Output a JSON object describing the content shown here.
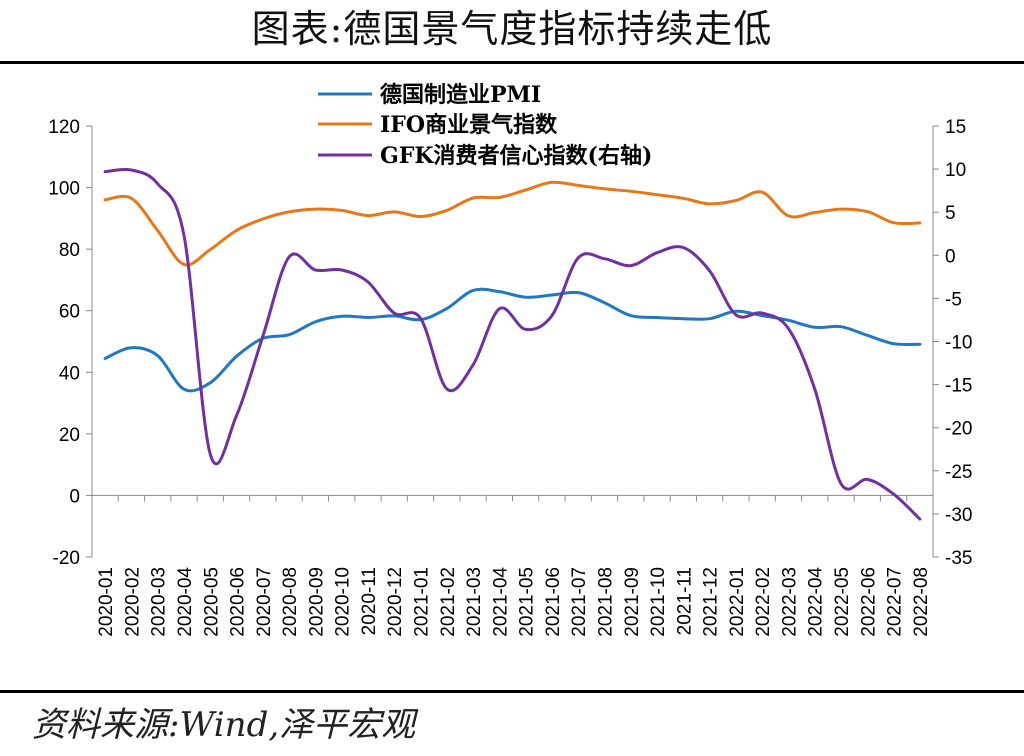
{
  "header": {
    "title": "图表:德国景气度指标持续走低"
  },
  "footer": {
    "source": "资料来源:Wind,泽平宏观"
  },
  "chart_data": {
    "type": "line",
    "title": "图表:德国景气度指标持续走低",
    "categories": [
      "2020-01",
      "2020-02",
      "2020-03",
      "2020-04",
      "2020-05",
      "2020-06",
      "2020-07",
      "2020-08",
      "2020-09",
      "2020-10",
      "2020-11",
      "2020-12",
      "2021-01",
      "2021-02",
      "2021-03",
      "2021-04",
      "2021-05",
      "2021-06",
      "2021-07",
      "2021-08",
      "2021-09",
      "2021-10",
      "2021-11",
      "2021-12",
      "2022-01",
      "2022-02",
      "2022-03",
      "2022-04",
      "2022-05",
      "2022-06",
      "2022-07",
      "2022-08"
    ],
    "y_left": {
      "min": -20,
      "max": 120,
      "ticks": [
        -20,
        0,
        20,
        40,
        60,
        80,
        100,
        120
      ]
    },
    "y_right": {
      "min": -35,
      "max": 15,
      "ticks": [
        -35,
        -30,
        -25,
        -20,
        -15,
        -10,
        -5,
        0,
        5,
        10,
        15
      ]
    },
    "grid": false,
    "legend_position": "top",
    "series": [
      {
        "name": "德国制造业PMI",
        "axis": "left",
        "color": "#1f78c1",
        "values": [
          44.5,
          48.0,
          45.4,
          34.5,
          36.6,
          45.2,
          51.0,
          52.2,
          56.4,
          58.2,
          57.8,
          58.3,
          57.1,
          60.7,
          66.6,
          66.2,
          64.4,
          65.1,
          65.9,
          62.6,
          58.4,
          57.8,
          57.4,
          57.4,
          59.8,
          58.4,
          56.9,
          54.6,
          54.8,
          52.0,
          49.3,
          49.1
        ]
      },
      {
        "name": "IFO商业景气指数",
        "axis": "left",
        "color": "#e8771a",
        "values": [
          96.0,
          96.5,
          86.0,
          75.0,
          79.9,
          86.1,
          89.8,
          92.1,
          93.0,
          92.6,
          90.9,
          92.1,
          90.6,
          92.6,
          96.6,
          96.8,
          99.2,
          101.7,
          100.7,
          99.6,
          98.8,
          97.7,
          96.5,
          94.7,
          95.8,
          98.5,
          90.8,
          91.9,
          93.0,
          92.2,
          88.6,
          88.5
        ]
      },
      {
        "name": "GFK消费者信心指数(右轴)",
        "axis": "right",
        "color": "#7030a0",
        "values": [
          9.7,
          9.9,
          8.3,
          2.3,
          -23.1,
          -18.6,
          -9.4,
          -0.2,
          -1.7,
          -1.7,
          -3.1,
          -6.7,
          -7.3,
          -15.5,
          -12.7,
          -6.2,
          -8.6,
          -7.0,
          -0.3,
          -0.4,
          -1.2,
          0.3,
          0.9,
          -1.8,
          -6.9,
          -6.7,
          -8.5,
          -15.5,
          -26.5,
          -26.0,
          -27.7,
          -30.6
        ]
      }
    ]
  }
}
